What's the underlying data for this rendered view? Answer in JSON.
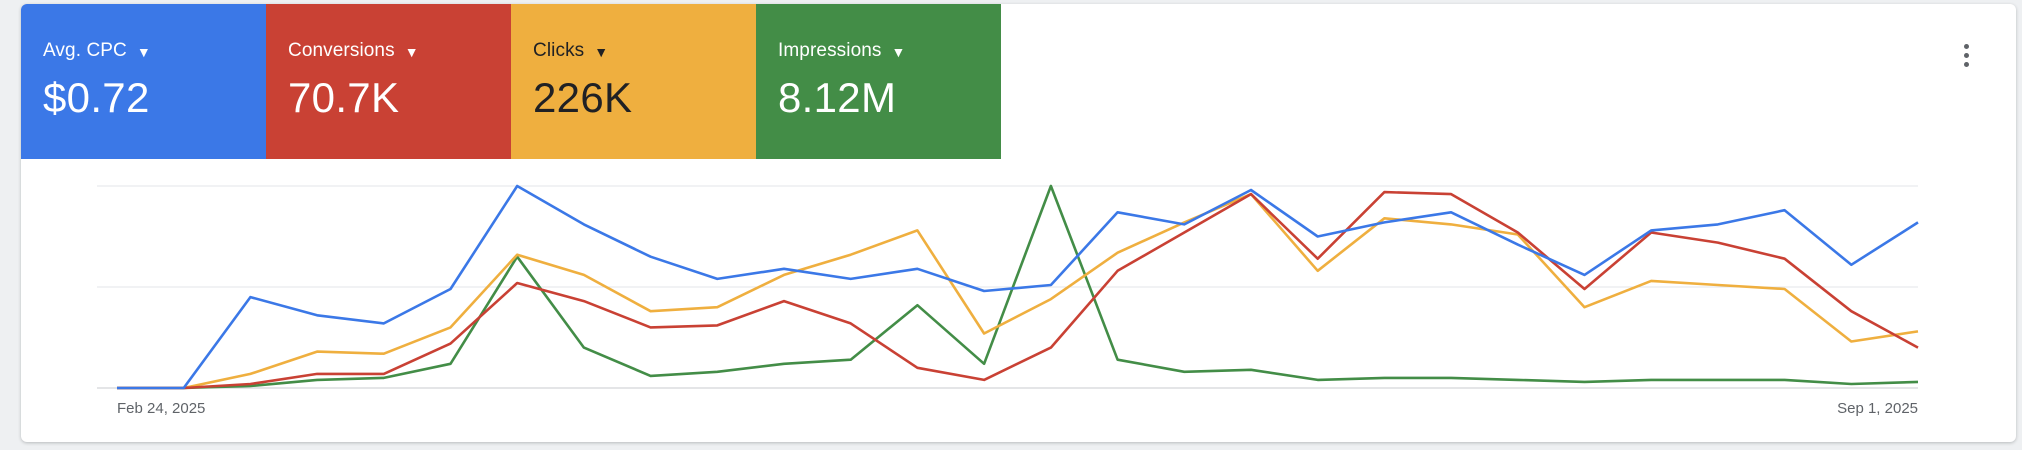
{
  "tiles": [
    {
      "label": "Avg. CPC",
      "value": "$0.72",
      "color": "#3b78e7"
    },
    {
      "label": "Conversions",
      "value": "70.7K",
      "color": "#c94134"
    },
    {
      "label": "Clicks",
      "value": "226K",
      "color": "#efaf3f"
    },
    {
      "label": "Impressions",
      "value": "8.12M",
      "color": "#438d47"
    }
  ],
  "icons": {
    "dropdown": "caret-down-icon",
    "menu": "more-vert-icon"
  },
  "chart_data": {
    "type": "line",
    "x_start_label": "Feb 24, 2025",
    "x_end_label": "Sep 1, 2025",
    "grid": true,
    "normalized": true,
    "ylim": [
      0,
      1
    ],
    "series": [
      {
        "name": "Avg. CPC",
        "color": "#3b78e7",
        "values": [
          0,
          0,
          0.45,
          0.36,
          0.32,
          0.49,
          1.0,
          0.81,
          0.65,
          0.54,
          0.59,
          0.54,
          0.59,
          0.48,
          0.51,
          0.87,
          0.81,
          0.98,
          0.75,
          0.82,
          0.87,
          0.71,
          0.56,
          0.78,
          0.81,
          0.88,
          0.61,
          0.82
        ]
      },
      {
        "name": "Conversions",
        "color": "#c94134",
        "values": [
          0,
          0,
          0.02,
          0.07,
          0.07,
          0.22,
          0.52,
          0.43,
          0.3,
          0.31,
          0.43,
          0.32,
          0.1,
          0.04,
          0.2,
          0.58,
          0.77,
          0.96,
          0.64,
          0.97,
          0.96,
          0.77,
          0.49,
          0.77,
          0.72,
          0.64,
          0.38,
          0.2
        ]
      },
      {
        "name": "Clicks",
        "color": "#efaf3f",
        "values": [
          0,
          0,
          0.07,
          0.18,
          0.17,
          0.3,
          0.66,
          0.56,
          0.38,
          0.4,
          0.56,
          0.66,
          0.78,
          0.27,
          0.44,
          0.67,
          0.82,
          0.96,
          0.58,
          0.84,
          0.81,
          0.76,
          0.4,
          0.53,
          0.51,
          0.49,
          0.23,
          0.28
        ]
      },
      {
        "name": "Impressions",
        "color": "#438d47",
        "values": [
          0,
          0,
          0.01,
          0.04,
          0.05,
          0.12,
          0.65,
          0.2,
          0.06,
          0.08,
          0.12,
          0.14,
          0.41,
          0.12,
          1.0,
          0.14,
          0.08,
          0.09,
          0.04,
          0.05,
          0.05,
          0.04,
          0.03,
          0.04,
          0.04,
          0.04,
          0.02,
          0.03
        ]
      }
    ]
  }
}
